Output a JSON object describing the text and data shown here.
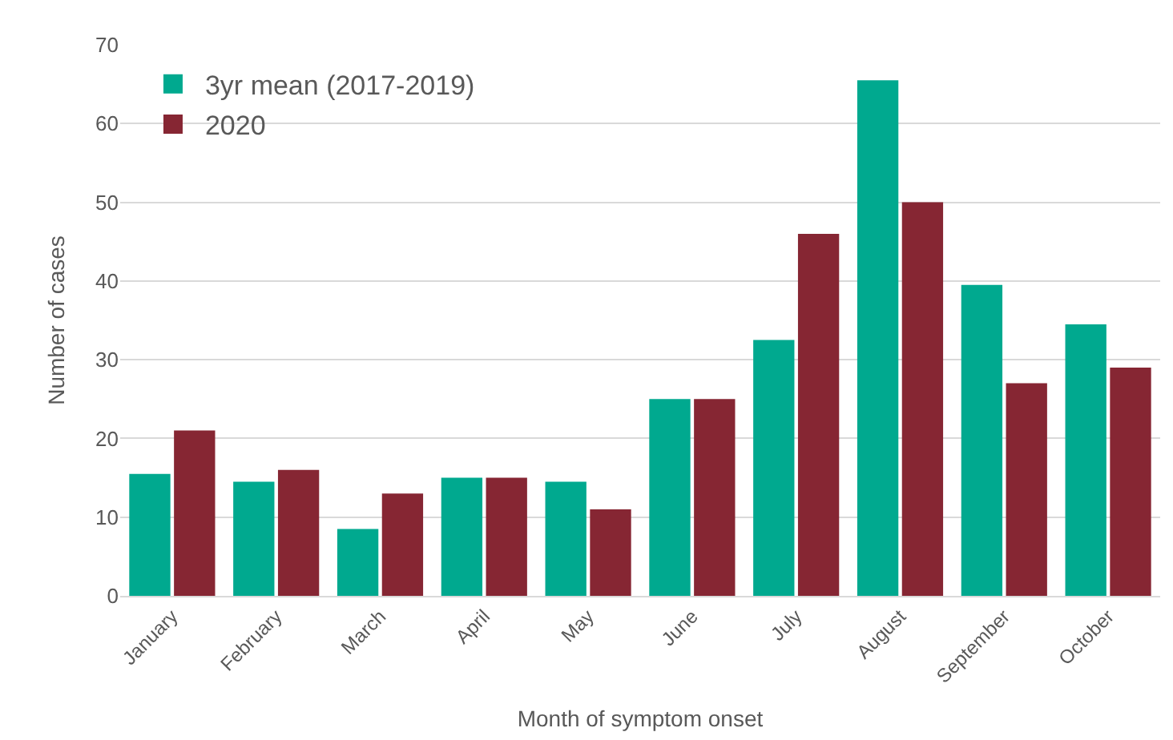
{
  "chart_data": {
    "type": "bar",
    "categories": [
      "January",
      "February",
      "March",
      "April",
      "May",
      "June",
      "July",
      "August",
      "September",
      "October"
    ],
    "series": [
      {
        "name": "3yr mean (2017-2019)",
        "color": "#00a98f",
        "values": [
          15.5,
          14.5,
          8.5,
          15,
          14.5,
          25,
          32.5,
          65.5,
          39.5,
          34.5
        ]
      },
      {
        "name": "2020",
        "color": "#862633",
        "values": [
          21,
          16,
          13,
          15,
          11,
          25,
          46,
          50,
          27,
          29
        ]
      }
    ],
    "xlabel": "Month of symptom onset",
    "ylabel": "Number of cases",
    "ylim": [
      0,
      70
    ],
    "yticks": [
      0,
      10,
      20,
      30,
      40,
      50,
      60,
      70
    ],
    "grid": "y",
    "legend": "top left"
  }
}
